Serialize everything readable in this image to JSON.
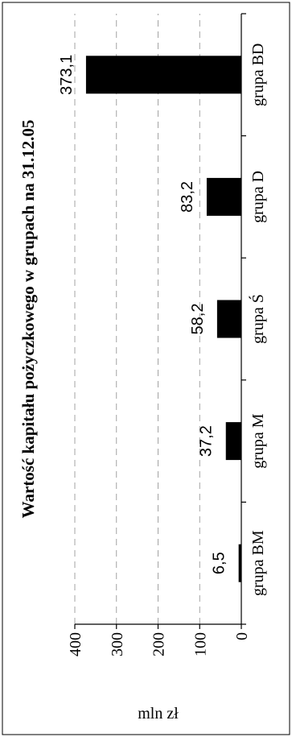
{
  "chart_data": {
    "type": "bar",
    "orientation": "horizontal",
    "title": "Wartość kapitału pożyczkowego w grupach na 31.12.05",
    "xlabel": "mln zł",
    "ylabel": "",
    "categories": [
      "grupa BM",
      "grupa M",
      "grupa Ś",
      "grupa D",
      "grupa BD"
    ],
    "values": [
      6.5,
      37.2,
      58.2,
      83.2,
      373.1
    ],
    "value_labels": [
      "6,5",
      "37,2",
      "58,2",
      "83,2",
      "373,1"
    ],
    "ticks": [
      0,
      100,
      200,
      300,
      400
    ],
    "tick_labels": [
      "0",
      "100",
      "200",
      "300",
      "400"
    ],
    "xlim": [
      0,
      400
    ],
    "grid": true,
    "grid_style": "dashed",
    "bar_color": "#000000",
    "rotated": "figure rotated 90 degrees counter-clockwise"
  }
}
